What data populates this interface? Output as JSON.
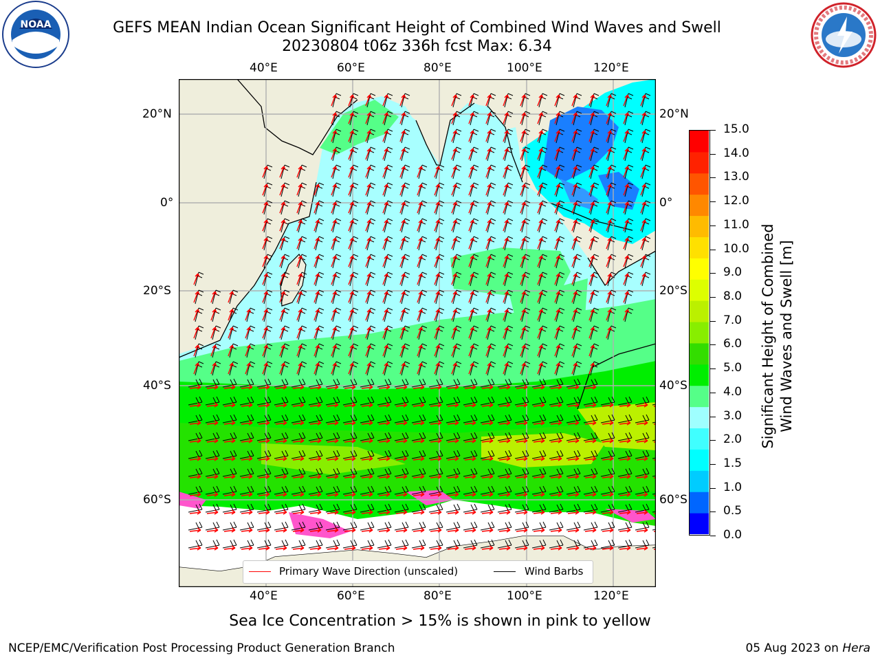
{
  "header": {
    "title_line1": "GEFS MEAN Indian Ocean Significant Height of Combined Wind Waves and Swell",
    "title_line2": "20230804 t06z 336h fcst   Max: 6.34"
  },
  "logos": {
    "left_label": "NOAA",
    "right_label": "NATIONAL WEATHER SERVICE"
  },
  "map": {
    "lon_ticks": [
      "40°E",
      "60°E",
      "80°E",
      "100°E",
      "120°E"
    ],
    "lat_ticks_left": [
      "20°N",
      "0°",
      "20°S",
      "40°S",
      "60°S"
    ],
    "lat_ticks_right": [
      "20°N",
      "0°",
      "20°S",
      "40°S",
      "60°S"
    ],
    "colors": {
      "land": "#efeedc",
      "ocean_low": "#a8ffff",
      "sea_ice": "#ffffff",
      "wave_arrow": "#ff0000",
      "wind_barb": "#000000"
    }
  },
  "legend": {
    "primary_wave_label": "Primary Wave Direction (unscaled)",
    "wind_barbs_label": "Wind Barbs"
  },
  "colorbar": {
    "title_line1": "Significant Height of Combined",
    "title_line2": "Wind Waves and Swell [m]",
    "tick_labels": [
      "15.0",
      "14.0",
      "13.0",
      "12.0",
      "11.0",
      "10.0",
      "9.0",
      "8.0",
      "7.0",
      "6.0",
      "5.0",
      "4.0",
      "3.0",
      "2.0",
      "1.5",
      "1.0",
      "0.5",
      "0.0"
    ],
    "segment_colors": [
      "#0000ff",
      "#0066ff",
      "#00ccff",
      "#00ffff",
      "#40ffff",
      "#9fffff",
      "#55ff88",
      "#00ee00",
      "#33dd00",
      "#88ee00",
      "#bbf000",
      "#ddff00",
      "#ffff00",
      "#ffe000",
      "#ffbb00",
      "#ff8800",
      "#ff5500",
      "#ff2200",
      "#ff0000"
    ]
  },
  "footer": {
    "sea_ice_note": "Sea Ice Concentration > 15% is shown in pink to yellow",
    "left_credit": "NCEP/EMC/Verification Post Processing Product Generation Branch",
    "right_date": "05 Aug 2023 on ",
    "right_host": "Hera"
  }
}
